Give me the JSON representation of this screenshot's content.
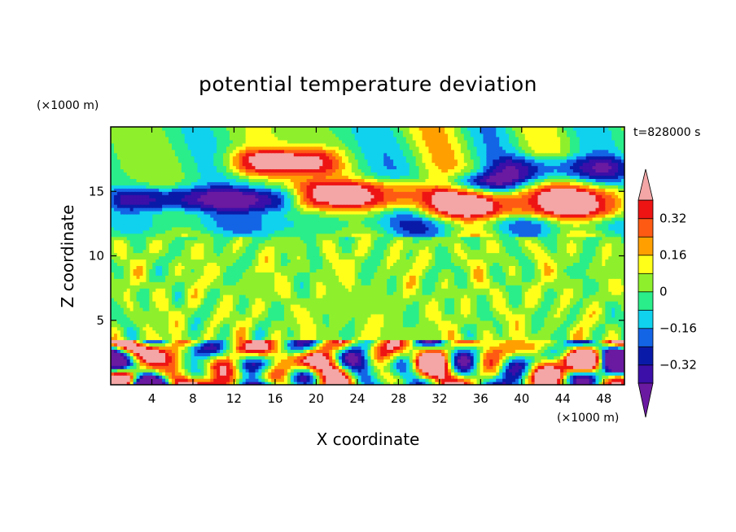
{
  "chart_data": {
    "type": "heatmap",
    "title": "potential temperature deviation",
    "xlabel": "X coordinate",
    "ylabel": "Z coordinate",
    "x_unit": "(×1000 m)",
    "y_unit": "(×1000 m)",
    "time_label": "t=828000 s",
    "xlim": [
      0,
      50
    ],
    "ylim": [
      0,
      20
    ],
    "x_ticks": [
      4,
      8,
      12,
      16,
      20,
      24,
      28,
      32,
      36,
      40,
      44,
      48
    ],
    "y_ticks": [
      5,
      10,
      15
    ],
    "colorbar": {
      "levels": [
        -0.4,
        -0.32,
        -0.24,
        -0.16,
        -0.08,
        0,
        0.08,
        0.16,
        0.24,
        0.32,
        0.4
      ],
      "tick_labels": [
        "0.32",
        "0.16",
        "0",
        "−0.16",
        "−0.32"
      ],
      "tick_values": [
        0.32,
        0.16,
        0,
        -0.16,
        -0.32
      ],
      "colors": [
        "#6a1aa0",
        "#3b0fa8",
        "#0a1aa8",
        "#1464e6",
        "#10d2ee",
        "#2aee8a",
        "#8ef02c",
        "#ffff1a",
        "#ffa000",
        "#ff5a14",
        "#ee1414",
        "#f4a6a6"
      ],
      "extend": "both"
    },
    "features": [
      {
        "x": [
          12,
          22
        ],
        "z": [
          16.4,
          18.2
        ],
        "value": 0.45
      },
      {
        "x": [
          18,
          30
        ],
        "z": [
          13.8,
          15.8
        ],
        "value": 0.45
      },
      {
        "x": [
          30,
          50
        ],
        "z": [
          13,
          15.3
        ],
        "value": 0.45
      },
      {
        "x": [
          0,
          18
        ],
        "z": [
          13.6,
          15.2
        ],
        "value": -0.42
      },
      {
        "x": [
          33,
          39
        ],
        "z": [
          14.8,
          16.3
        ],
        "value": -0.45
      },
      {
        "x": [
          38,
          50
        ],
        "z": [
          16,
          17.6
        ],
        "value": -0.35
      },
      {
        "x": [
          0,
          50
        ],
        "z": [
          11.8,
          13.2
        ],
        "value": -0.12
      },
      {
        "x": [
          0,
          50
        ],
        "z": [
          3.6,
          11.5
        ],
        "value": 0.04
      },
      {
        "x": [
          0,
          50
        ],
        "z": [
          0,
          3.5
        ],
        "value": 0.1
      }
    ]
  }
}
